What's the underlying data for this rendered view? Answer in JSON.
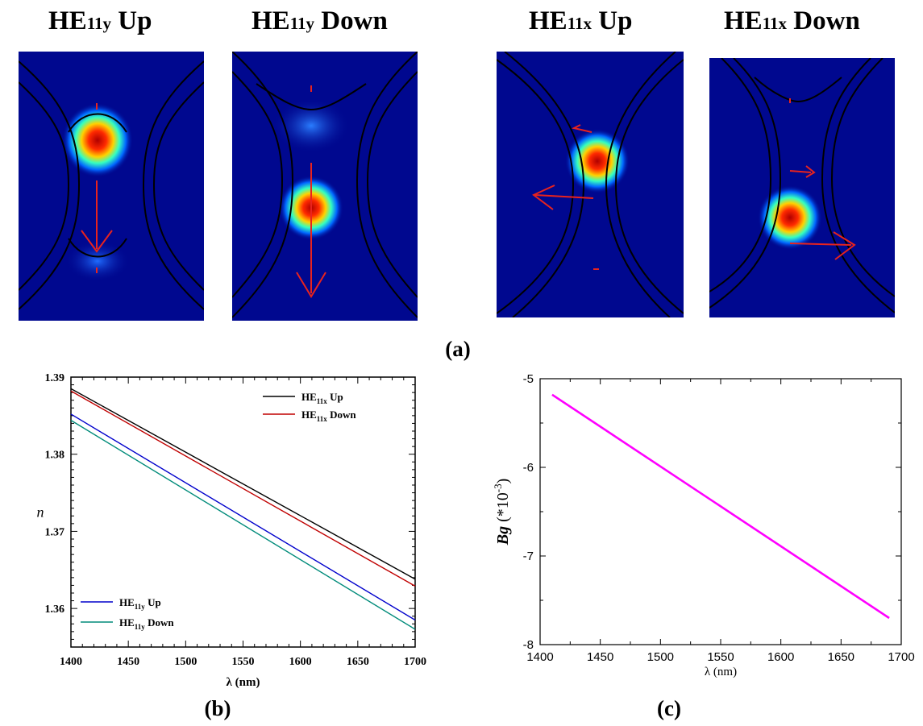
{
  "mode_titles": [
    {
      "base": "HE",
      "sub": "11y",
      "suffix": " Up"
    },
    {
      "base": "HE",
      "sub": "11y",
      "suffix": " Down"
    },
    {
      "base": "HE",
      "sub": "11x",
      "suffix": " Up"
    },
    {
      "base": "HE",
      "sub": "11x",
      "suffix": " Down"
    }
  ],
  "captions": {
    "a": "(a)",
    "b": "(b)",
    "c": "(c)"
  },
  "colors": {
    "field_bg": "#00088f",
    "arrow": "#e8231e",
    "black": "#000000",
    "red": "#c00000",
    "blue": "#0000cc",
    "teal": "#008b7a",
    "magenta": "#ff00ff"
  },
  "chart_data": [
    {
      "type": "line",
      "xlabel": "λ (nm)",
      "ylabel": "n",
      "xlim": [
        1400,
        1700
      ],
      "ylim": [
        1.355,
        1.39
      ],
      "xticks": [
        "1400",
        "1450",
        "1500",
        "1550",
        "1600",
        "1650",
        "1700"
      ],
      "yticks": [
        "1.36",
        "1.37",
        "1.38",
        "1.39"
      ],
      "legend_top": [
        {
          "base": "HE",
          "sub": "11x",
          "suffix": " Up",
          "color": "#000000"
        },
        {
          "base": "HE",
          "sub": "11x",
          "suffix": " Down",
          "color": "#c00000"
        }
      ],
      "legend_bottom": [
        {
          "base": "HE",
          "sub": "11y",
          "suffix": " Up",
          "color": "#0000cc"
        },
        {
          "base": "HE",
          "sub": "11y",
          "suffix": " Down",
          "color": "#008b7a"
        }
      ],
      "series": [
        {
          "x": [
            1400,
            1700
          ],
          "y": [
            1.3885,
            1.3638
          ],
          "color": "#000000"
        },
        {
          "x": [
            1400,
            1700
          ],
          "y": [
            1.3882,
            1.3629
          ],
          "color": "#c00000"
        },
        {
          "x": [
            1400,
            1700
          ],
          "y": [
            1.3852,
            1.3585
          ],
          "color": "#0000cc"
        },
        {
          "x": [
            1400,
            1700
          ],
          "y": [
            1.3844,
            1.3573
          ],
          "color": "#008b7a"
        }
      ]
    },
    {
      "type": "line",
      "xlabel": "λ (nm)",
      "ylabel": "Bg",
      "ylabel_unit": "(*10",
      "ylabel_exp": "-3",
      "ylabel_close": ")",
      "xlim": [
        1400,
        1700
      ],
      "ylim": [
        -8,
        -5
      ],
      "xticks": [
        "1400",
        "1450",
        "1500",
        "1550",
        "1600",
        "1650",
        "1700"
      ],
      "yticks": [
        "-5",
        "-6",
        "-7",
        "-8"
      ],
      "series": [
        {
          "x": [
            1410,
            1690
          ],
          "y": [
            -5.18,
            -7.7
          ],
          "color": "#ff00ff"
        }
      ]
    }
  ]
}
